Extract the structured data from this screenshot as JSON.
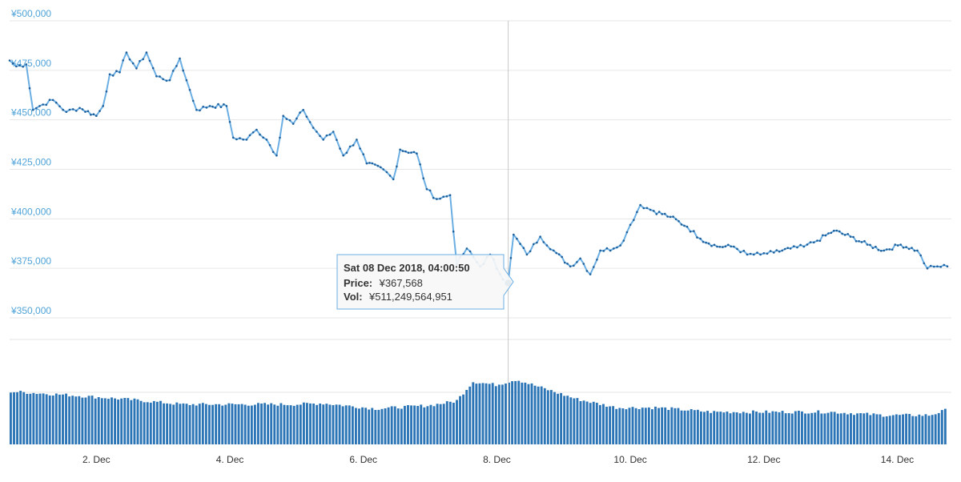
{
  "colors": {
    "line": "#6aaee3",
    "marker": "#1f5f9a",
    "volume": "#2b74b5",
    "axis_text": "#4fa3d9",
    "grid": "#e6e6e6"
  },
  "tooltip": {
    "title": "Sat 08 Dec 2018, 04:00:50",
    "price_label": "Price:",
    "price_value": "¥367,568",
    "vol_label": "Vol:",
    "vol_value": "¥511,249,564,951"
  },
  "chart_data": {
    "type": "line",
    "price_axis": {
      "ylim": [
        350000,
        500000
      ],
      "tick_labels": [
        "¥500,000",
        "¥475,000",
        "¥450,000",
        "¥425,000",
        "¥400,000",
        "¥375,000",
        "¥350,000"
      ],
      "tick_values": [
        500000,
        475000,
        450000,
        425000,
        400000,
        375000,
        350000
      ]
    },
    "x_axis": {
      "range_days": [
        0.7,
        14.75
      ],
      "tick_labels": [
        "2. Dec",
        "4. Dec",
        "6. Dec",
        "8. Dec",
        "10. Dec",
        "12. Dec",
        "14. Dec"
      ],
      "tick_days": [
        2,
        4,
        6,
        8,
        10,
        12,
        14
      ]
    },
    "highlight": {
      "day": 8.17,
      "price": 367568
    },
    "price_anchors": [
      [
        0.7,
        480000
      ],
      [
        0.8,
        477000
      ],
      [
        0.95,
        478000
      ],
      [
        1.05,
        455000
      ],
      [
        1.15,
        457000
      ],
      [
        1.35,
        460000
      ],
      [
        1.55,
        454000
      ],
      [
        1.75,
        456000
      ],
      [
        2.0,
        452000
      ],
      [
        2.1,
        457000
      ],
      [
        2.2,
        473000
      ],
      [
        2.35,
        474000
      ],
      [
        2.45,
        484000
      ],
      [
        2.6,
        476000
      ],
      [
        2.75,
        484000
      ],
      [
        2.9,
        472000
      ],
      [
        3.1,
        470000
      ],
      [
        3.25,
        481000
      ],
      [
        3.35,
        470000
      ],
      [
        3.5,
        455000
      ],
      [
        3.7,
        457000
      ],
      [
        3.95,
        457000
      ],
      [
        4.05,
        441000
      ],
      [
        4.25,
        440000
      ],
      [
        4.4,
        445000
      ],
      [
        4.55,
        440000
      ],
      [
        4.7,
        432000
      ],
      [
        4.8,
        452000
      ],
      [
        4.95,
        448000
      ],
      [
        5.1,
        455000
      ],
      [
        5.25,
        446000
      ],
      [
        5.4,
        440000
      ],
      [
        5.55,
        444000
      ],
      [
        5.7,
        432000
      ],
      [
        5.9,
        440000
      ],
      [
        6.05,
        428000
      ],
      [
        6.3,
        425000
      ],
      [
        6.45,
        420000
      ],
      [
        6.55,
        435000
      ],
      [
        6.8,
        433000
      ],
      [
        6.95,
        415000
      ],
      [
        7.1,
        410000
      ],
      [
        7.3,
        412000
      ],
      [
        7.4,
        377000
      ],
      [
        7.55,
        385000
      ],
      [
        7.75,
        376000
      ],
      [
        7.9,
        382000
      ],
      [
        8.05,
        372000
      ],
      [
        8.17,
        367568
      ],
      [
        8.25,
        392000
      ],
      [
        8.45,
        382000
      ],
      [
        8.65,
        391000
      ],
      [
        8.85,
        384000
      ],
      [
        9.1,
        376000
      ],
      [
        9.25,
        380000
      ],
      [
        9.4,
        372000
      ],
      [
        9.55,
        384000
      ],
      [
        9.75,
        385000
      ],
      [
        9.9,
        389000
      ],
      [
        10.0,
        397000
      ],
      [
        10.15,
        407000
      ],
      [
        10.35,
        404000
      ],
      [
        10.6,
        401000
      ],
      [
        10.85,
        396000
      ],
      [
        11.05,
        390000
      ],
      [
        11.3,
        386000
      ],
      [
        11.55,
        386000
      ],
      [
        11.75,
        382000
      ],
      [
        11.95,
        382000
      ],
      [
        12.15,
        383000
      ],
      [
        12.4,
        385000
      ],
      [
        12.6,
        386000
      ],
      [
        12.8,
        389000
      ],
      [
        13.05,
        394000
      ],
      [
        13.3,
        391000
      ],
      [
        13.55,
        387000
      ],
      [
        13.8,
        384000
      ],
      [
        14.05,
        387000
      ],
      [
        14.3,
        384000
      ],
      [
        14.45,
        375000
      ],
      [
        14.6,
        376000
      ],
      [
        14.75,
        376000
      ]
    ],
    "volume_anchors": [
      [
        0.7,
        0.49
      ],
      [
        1.5,
        0.46
      ],
      [
        2.4,
        0.42
      ],
      [
        3.3,
        0.37
      ],
      [
        4.1,
        0.37
      ],
      [
        5.0,
        0.37
      ],
      [
        5.4,
        0.38
      ],
      [
        6.2,
        0.33
      ],
      [
        7.0,
        0.36
      ],
      [
        7.4,
        0.4
      ],
      [
        7.65,
        0.58
      ],
      [
        8.0,
        0.55
      ],
      [
        8.3,
        0.6
      ],
      [
        8.45,
        0.57
      ],
      [
        8.8,
        0.5
      ],
      [
        9.2,
        0.42
      ],
      [
        9.8,
        0.34
      ],
      [
        10.4,
        0.34
      ],
      [
        11.2,
        0.3
      ],
      [
        12.0,
        0.3
      ],
      [
        13.0,
        0.3
      ],
      [
        13.8,
        0.27
      ],
      [
        14.5,
        0.27
      ],
      [
        14.75,
        0.32
      ]
    ]
  }
}
